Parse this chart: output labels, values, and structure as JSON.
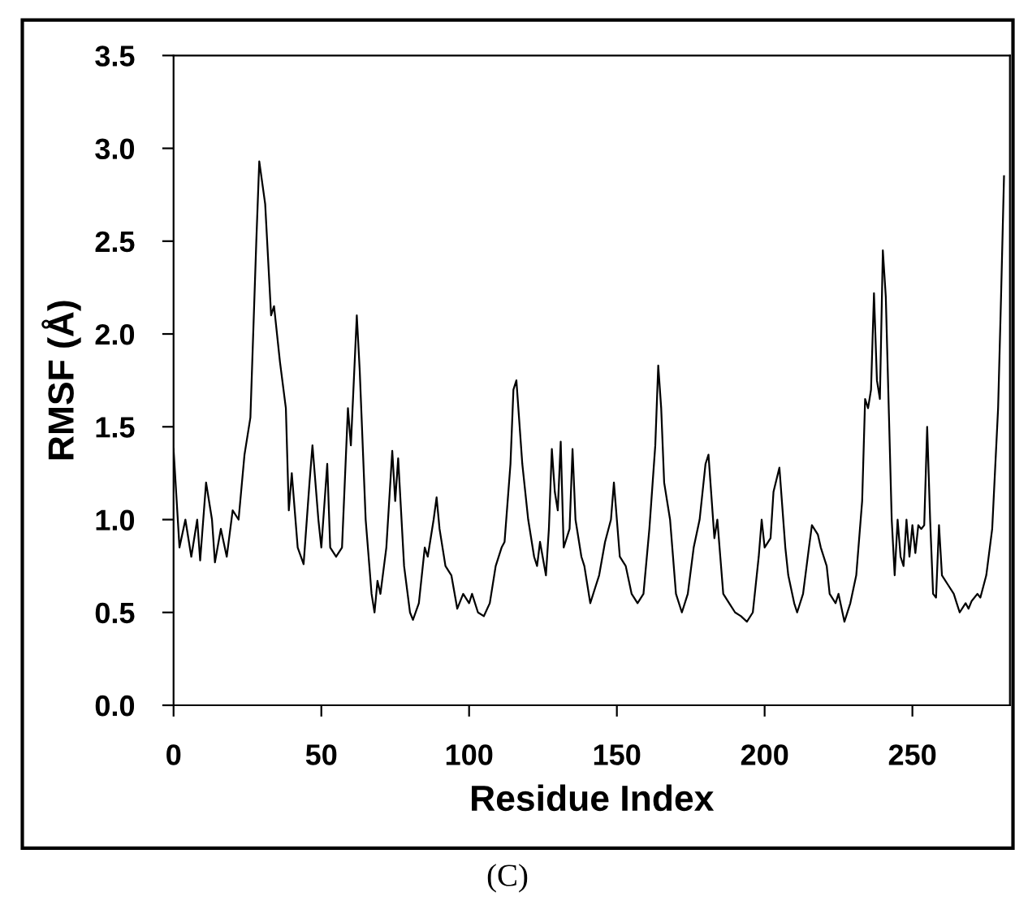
{
  "chart_data": {
    "type": "line",
    "xlabel": "Residue Index",
    "ylabel": "RMSF (Å)",
    "annotations": [
      "(C)"
    ],
    "xlim": [
      0,
      283
    ],
    "ylim": [
      0,
      3.5
    ],
    "xticks": [
      0,
      50,
      100,
      150,
      200,
      250
    ],
    "yticks": [
      {
        "value": 0,
        "label": "0.0"
      },
      {
        "value": 0.5,
        "label": "0.5"
      },
      {
        "value": 1.0,
        "label": "1.0"
      },
      {
        "value": 1.5,
        "label": "1.5"
      },
      {
        "value": 2.0,
        "label": "2.0"
      },
      {
        "value": 2.5,
        "label": "2.5"
      },
      {
        "value": 3.0,
        "label": "3.0"
      },
      {
        "value": 3.5,
        "label": "3.5"
      }
    ],
    "grid": false,
    "marker": "none",
    "line_style": "solid",
    "series": [
      {
        "color": "#000000",
        "x": [
          0,
          2,
          4,
          6,
          8,
          9,
          11,
          13,
          14,
          16,
          18,
          20,
          22,
          24,
          26,
          28,
          29,
          31,
          33,
          34,
          36,
          38,
          39,
          40,
          42,
          44,
          46,
          47,
          49,
          50,
          52,
          53,
          55,
          57,
          59,
          60,
          62,
          63,
          65,
          67,
          68,
          69,
          70,
          72,
          74,
          75,
          76,
          78,
          80,
          81,
          83,
          85,
          86,
          88,
          89,
          90,
          92,
          94,
          96,
          98,
          100,
          101,
          103,
          105,
          107,
          109,
          111,
          112,
          114,
          115,
          116,
          118,
          120,
          122,
          123,
          124,
          126,
          127,
          128,
          129,
          130,
          131,
          132,
          134,
          135,
          136,
          138,
          139,
          141,
          143,
          144,
          146,
          148,
          149,
          151,
          153,
          155,
          157,
          159,
          161,
          163,
          164,
          165,
          166,
          168,
          170,
          172,
          174,
          176,
          178,
          179,
          180,
          181,
          183,
          184,
          185,
          186,
          188,
          190,
          192,
          194,
          196,
          198,
          199,
          200,
          202,
          203,
          205,
          207,
          208,
          210,
          211,
          213,
          215,
          216,
          218,
          219,
          221,
          222,
          224,
          225,
          227,
          229,
          231,
          233,
          234,
          235,
          236,
          237,
          238,
          239,
          240,
          241,
          243,
          244,
          245,
          246,
          247,
          248,
          249,
          250,
          251,
          252,
          253,
          254,
          255,
          256,
          257,
          258,
          259,
          260,
          262,
          264,
          265,
          266,
          268,
          269,
          270,
          272,
          273,
          275,
          277,
          279,
          280,
          281
        ],
        "values": [
          1.38,
          0.85,
          1.0,
          0.8,
          1.0,
          0.78,
          1.2,
          1.0,
          0.77,
          0.95,
          0.8,
          1.05,
          1.0,
          1.35,
          1.55,
          2.5,
          2.93,
          2.7,
          2.1,
          2.15,
          1.85,
          1.6,
          1.05,
          1.25,
          0.85,
          0.76,
          1.2,
          1.4,
          1.0,
          0.85,
          1.3,
          0.85,
          0.8,
          0.85,
          1.6,
          1.4,
          2.1,
          1.8,
          1.0,
          0.6,
          0.5,
          0.67,
          0.6,
          0.85,
          1.37,
          1.1,
          1.33,
          0.75,
          0.5,
          0.46,
          0.55,
          0.85,
          0.8,
          1.0,
          1.12,
          0.95,
          0.75,
          0.7,
          0.52,
          0.6,
          0.55,
          0.6,
          0.5,
          0.48,
          0.55,
          0.75,
          0.85,
          0.88,
          1.3,
          1.7,
          1.75,
          1.3,
          1.0,
          0.8,
          0.75,
          0.88,
          0.7,
          0.95,
          1.38,
          1.15,
          1.05,
          1.42,
          0.85,
          0.95,
          1.38,
          1.0,
          0.8,
          0.75,
          0.55,
          0.65,
          0.7,
          0.88,
          1.0,
          1.2,
          0.8,
          0.75,
          0.6,
          0.55,
          0.6,
          0.95,
          1.4,
          1.83,
          1.6,
          1.2,
          1.0,
          0.6,
          0.5,
          0.6,
          0.85,
          1.0,
          1.15,
          1.3,
          1.35,
          0.9,
          1.0,
          0.8,
          0.6,
          0.55,
          0.5,
          0.48,
          0.45,
          0.5,
          0.8,
          1.0,
          0.85,
          0.9,
          1.15,
          1.28,
          0.85,
          0.7,
          0.55,
          0.5,
          0.6,
          0.85,
          0.97,
          0.92,
          0.85,
          0.75,
          0.6,
          0.55,
          0.6,
          0.45,
          0.55,
          0.7,
          1.1,
          1.65,
          1.6,
          1.7,
          2.22,
          1.75,
          1.65,
          2.45,
          2.2,
          1.0,
          0.7,
          1.0,
          0.8,
          0.75,
          1.0,
          0.8,
          0.97,
          0.82,
          0.97,
          0.95,
          0.97,
          1.5,
          1.0,
          0.6,
          0.58,
          0.97,
          0.7,
          0.65,
          0.6,
          0.55,
          0.5,
          0.55,
          0.52,
          0.56,
          0.6,
          0.58,
          0.7,
          0.95,
          1.6,
          2.2,
          2.85
        ]
      }
    ]
  }
}
